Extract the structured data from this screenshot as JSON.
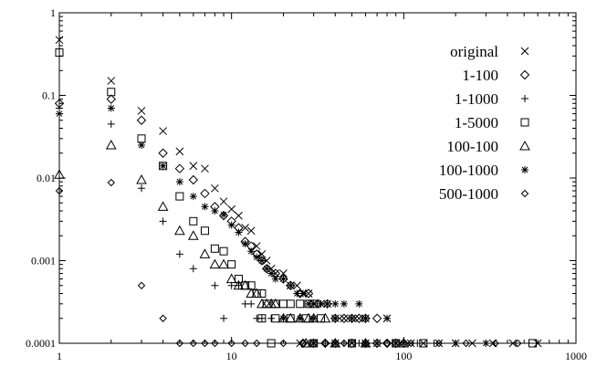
{
  "chart_data": {
    "type": "scatter",
    "title": "",
    "xlabel": "",
    "ylabel": "",
    "xscale": "log",
    "yscale": "log",
    "xlim": [
      1,
      1000
    ],
    "ylim": [
      0.0001,
      1
    ],
    "grid": false,
    "legend_position": "top-right",
    "x_ticks": [
      {
        "value": 1,
        "label": "1"
      },
      {
        "value": 10,
        "label": "10"
      },
      {
        "value": 100,
        "label": "100"
      },
      {
        "value": 1000,
        "label": "1000"
      }
    ],
    "y_ticks": [
      {
        "value": 0.0001,
        "label": "0.0001"
      },
      {
        "value": 0.001,
        "label": "0.001"
      },
      {
        "value": 0.01,
        "label": "0.01"
      },
      {
        "value": 0.1,
        "label": "0.1"
      },
      {
        "value": 1,
        "label": "1"
      }
    ],
    "series": [
      {
        "name": "original",
        "marker": "x",
        "points": [
          [
            1,
            0.47
          ],
          [
            2,
            0.15
          ],
          [
            3,
            0.065
          ],
          [
            4,
            0.037
          ],
          [
            5,
            0.021
          ],
          [
            6,
            0.014
          ],
          [
            7,
            0.013
          ],
          [
            8,
            0.0075
          ],
          [
            9,
            0.0052
          ],
          [
            10,
            0.0042
          ],
          [
            11,
            0.0035
          ],
          [
            12,
            0.0025
          ],
          [
            13,
            0.0023
          ],
          [
            14,
            0.0015
          ],
          [
            15,
            0.0012
          ],
          [
            16,
            0.001
          ],
          [
            17,
            0.0008
          ],
          [
            18,
            0.0007
          ],
          [
            20,
            0.0007
          ],
          [
            22,
            0.0005
          ],
          [
            24,
            0.0005
          ],
          [
            26,
            0.0004
          ],
          [
            28,
            0.0004
          ],
          [
            30,
            0.0003
          ],
          [
            33,
            0.0003
          ],
          [
            36,
            0.0003
          ],
          [
            40,
            0.0002
          ],
          [
            45,
            0.0002
          ],
          [
            50,
            0.0002
          ],
          [
            55,
            0.0002
          ],
          [
            60,
            0.0002
          ],
          [
            80,
            0.0002
          ],
          [
            25,
            0.0001
          ],
          [
            30,
            0.0001
          ],
          [
            40,
            0.0001
          ],
          [
            50,
            0.0001
          ],
          [
            60,
            0.0001
          ],
          [
            70,
            0.0001
          ],
          [
            90,
            0.0001
          ],
          [
            110,
            0.0001
          ],
          [
            130,
            0.0001
          ],
          [
            160,
            0.0001
          ],
          [
            200,
            0.0001
          ],
          [
            250,
            0.0001
          ],
          [
            330,
            0.0001
          ],
          [
            430,
            0.0001
          ],
          [
            600,
            0.0001
          ]
        ]
      },
      {
        "name": "1-100",
        "marker": "diamond",
        "points": [
          [
            1,
            0.08
          ],
          [
            2,
            0.09
          ],
          [
            3,
            0.05
          ],
          [
            4,
            0.02
          ],
          [
            5,
            0.013
          ],
          [
            6,
            0.0095
          ],
          [
            7,
            0.0065
          ],
          [
            8,
            0.0045
          ],
          [
            9,
            0.0035
          ],
          [
            10,
            0.003
          ],
          [
            11,
            0.0025
          ],
          [
            12,
            0.0017
          ],
          [
            13,
            0.0015
          ],
          [
            14,
            0.0012
          ],
          [
            15,
            0.001
          ],
          [
            16,
            0.0008
          ],
          [
            18,
            0.0007
          ],
          [
            20,
            0.0006
          ],
          [
            22,
            0.0005
          ],
          [
            25,
            0.0004
          ],
          [
            28,
            0.0004
          ],
          [
            32,
            0.0003
          ],
          [
            36,
            0.0003
          ],
          [
            40,
            0.0002
          ],
          [
            45,
            0.0002
          ],
          [
            50,
            0.0002
          ],
          [
            55,
            0.0002
          ],
          [
            60,
            0.0002
          ],
          [
            70,
            0.0002
          ],
          [
            26,
            0.0001
          ],
          [
            30,
            0.0001
          ],
          [
            35,
            0.0001
          ],
          [
            40,
            0.0001
          ],
          [
            50,
            0.0001
          ],
          [
            60,
            0.0001
          ],
          [
            70,
            0.0001
          ],
          [
            80,
            0.0001
          ],
          [
            90,
            0.0001
          ],
          [
            100,
            0.0001
          ]
        ]
      },
      {
        "name": "1-1000",
        "marker": "plus",
        "points": [
          [
            1,
            0.07
          ],
          [
            2,
            0.045
          ],
          [
            3,
            0.0075
          ],
          [
            4,
            0.003
          ],
          [
            5,
            0.0012
          ],
          [
            6,
            0.0008
          ],
          [
            8,
            0.0005
          ],
          [
            10,
            0.0005
          ],
          [
            11,
            0.0005
          ],
          [
            12,
            0.0003
          ],
          [
            13,
            0.0003
          ],
          [
            14,
            0.0002
          ],
          [
            15,
            0.0002
          ],
          [
            17,
            0.0002
          ],
          [
            9,
            0.0002
          ],
          [
            28,
            0.0001
          ],
          [
            35,
            0.0001
          ],
          [
            45,
            0.0001
          ],
          [
            55,
            0.0001
          ],
          [
            70,
            0.0001
          ],
          [
            90,
            0.0001
          ],
          [
            120,
            0.0001
          ],
          [
            150,
            0.0001
          ],
          [
            200,
            0.0001
          ]
        ]
      },
      {
        "name": "1-5000",
        "marker": "square",
        "points": [
          [
            1,
            0.33
          ],
          [
            2,
            0.11
          ],
          [
            3,
            0.03
          ],
          [
            4,
            0.014
          ],
          [
            5,
            0.006
          ],
          [
            6,
            0.003
          ],
          [
            7,
            0.0023
          ],
          [
            8,
            0.0014
          ],
          [
            9,
            0.0013
          ],
          [
            10,
            0.0009
          ],
          [
            11,
            0.0006
          ],
          [
            12,
            0.0005
          ],
          [
            13,
            0.0005
          ],
          [
            14,
            0.0004
          ],
          [
            15,
            0.0004
          ],
          [
            16,
            0.0003
          ],
          [
            18,
            0.0003
          ],
          [
            20,
            0.0003
          ],
          [
            22,
            0.0003
          ],
          [
            25,
            0.0003
          ],
          [
            28,
            0.0003
          ],
          [
            30,
            0.0003
          ],
          [
            15,
            0.0002
          ],
          [
            18,
            0.0002
          ],
          [
            22,
            0.0002
          ],
          [
            27,
            0.0002
          ],
          [
            33,
            0.0002
          ],
          [
            17,
            0.0001
          ],
          [
            30,
            0.0001
          ],
          [
            50,
            0.0001
          ],
          [
            90,
            0.0001
          ],
          [
            130,
            0.0001
          ],
          [
            560,
            0.0001
          ]
        ]
      },
      {
        "name": "100-100",
        "marker": "triangle",
        "points": [
          [
            1,
            0.011
          ],
          [
            2,
            0.025
          ],
          [
            3,
            0.0095
          ],
          [
            4,
            0.0045
          ],
          [
            5,
            0.0023
          ],
          [
            6,
            0.002
          ],
          [
            7,
            0.0012
          ],
          [
            8,
            0.0009
          ],
          [
            9,
            0.0009
          ],
          [
            10,
            0.0006
          ],
          [
            11,
            0.0005
          ],
          [
            12,
            0.0005
          ],
          [
            13,
            0.0004
          ],
          [
            14,
            0.0004
          ],
          [
            15,
            0.0003
          ],
          [
            16,
            0.0003
          ],
          [
            17,
            0.0003
          ],
          [
            18,
            0.0003
          ],
          [
            20,
            0.0002
          ],
          [
            22,
            0.0002
          ],
          [
            25,
            0.0002
          ],
          [
            28,
            0.0002
          ],
          [
            30,
            0.0002
          ],
          [
            35,
            0.0002
          ],
          [
            27,
            0.0001
          ],
          [
            40,
            0.0001
          ],
          [
            60,
            0.0001
          ],
          [
            100,
            0.0001
          ]
        ]
      },
      {
        "name": "100-1000",
        "marker": "asterisk",
        "points": [
          [
            1,
            0.06
          ],
          [
            2,
            0.07
          ],
          [
            3,
            0.025
          ],
          [
            4,
            0.014
          ],
          [
            5,
            0.009
          ],
          [
            6,
            0.006
          ],
          [
            7,
            0.0045
          ],
          [
            8,
            0.004
          ],
          [
            9,
            0.0036
          ],
          [
            10,
            0.0027
          ],
          [
            11,
            0.0022
          ],
          [
            12,
            0.0016
          ],
          [
            13,
            0.0013
          ],
          [
            14,
            0.0011
          ],
          [
            15,
            0.001
          ],
          [
            16,
            0.0008
          ],
          [
            17,
            0.0007
          ],
          [
            18,
            0.0006
          ],
          [
            20,
            0.0006
          ],
          [
            22,
            0.0005
          ],
          [
            24,
            0.0004
          ],
          [
            26,
            0.0004
          ],
          [
            28,
            0.0003
          ],
          [
            30,
            0.0003
          ],
          [
            33,
            0.0003
          ],
          [
            36,
            0.0003
          ],
          [
            40,
            0.0003
          ],
          [
            45,
            0.0003
          ],
          [
            55,
            0.0003
          ],
          [
            20,
            0.0002
          ],
          [
            25,
            0.0002
          ],
          [
            30,
            0.0002
          ],
          [
            40,
            0.0002
          ],
          [
            50,
            0.0002
          ],
          [
            60,
            0.0002
          ],
          [
            80,
            0.0002
          ],
          [
            30,
            0.0001
          ],
          [
            40,
            0.0001
          ],
          [
            60,
            0.0001
          ],
          [
            100,
            0.0001
          ],
          [
            200,
            0.0001
          ],
          [
            300,
            0.0001
          ]
        ]
      },
      {
        "name": "500-1000",
        "marker": "diamond-small",
        "points": [
          [
            1,
            0.007
          ],
          [
            2,
            0.0088
          ],
          [
            3,
            0.0005
          ],
          [
            4,
            0.0002
          ],
          [
            5,
            0.0001
          ],
          [
            6,
            0.0001
          ],
          [
            7,
            0.0001
          ],
          [
            8,
            0.0001
          ],
          [
            10,
            0.0001
          ],
          [
            12,
            0.0001
          ],
          [
            14,
            0.0001
          ],
          [
            20,
            0.0001
          ],
          [
            26,
            0.0001
          ],
          [
            35,
            0.0001
          ],
          [
            45,
            0.0001
          ],
          [
            60,
            0.0001
          ],
          [
            80,
            0.0001
          ],
          [
            110,
            0.0001
          ],
          [
            160,
            0.0001
          ],
          [
            230,
            0.0001
          ],
          [
            340,
            0.0001
          ],
          [
            460,
            0.0001
          ]
        ]
      }
    ]
  }
}
